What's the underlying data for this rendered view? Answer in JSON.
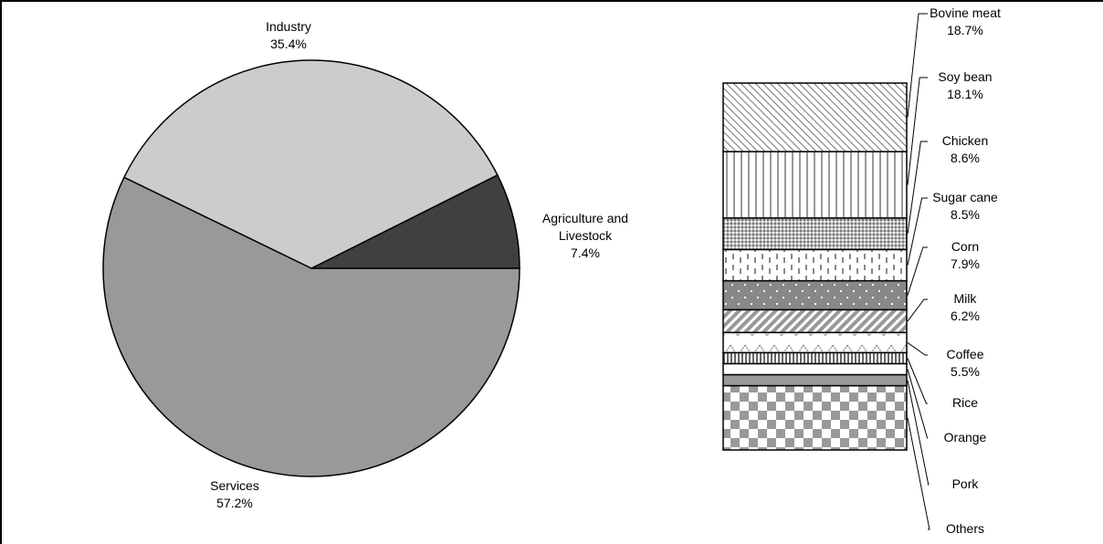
{
  "chart_data": [
    {
      "type": "pie",
      "categories": [
        "Agriculture and Livestock",
        "Industry",
        "Services"
      ],
      "values": [
        7.4,
        35.4,
        57.2
      ],
      "value_labels": [
        "7.4%",
        "35.4%",
        "57.2%"
      ],
      "colors": [
        "#404040",
        "#cccccc",
        "#999999"
      ]
    },
    {
      "type": "stacked-bar",
      "categories": [
        "Bovine meat",
        "Soy bean",
        "Chicken",
        "Sugar cane",
        "Corn",
        "Milk",
        "Coffee",
        "Rice",
        "Orange",
        "Pork",
        "Others"
      ],
      "values": [
        18.7,
        18.1,
        8.6,
        8.5,
        7.9,
        6.2,
        5.5,
        3.0,
        3.0,
        3.0,
        17.5
      ],
      "value_labels": [
        "18.7%",
        "18.1%",
        "8.6%",
        "8.5%",
        "7.9%",
        "6.2%",
        "5.5%",
        null,
        null,
        null,
        null
      ]
    }
  ]
}
